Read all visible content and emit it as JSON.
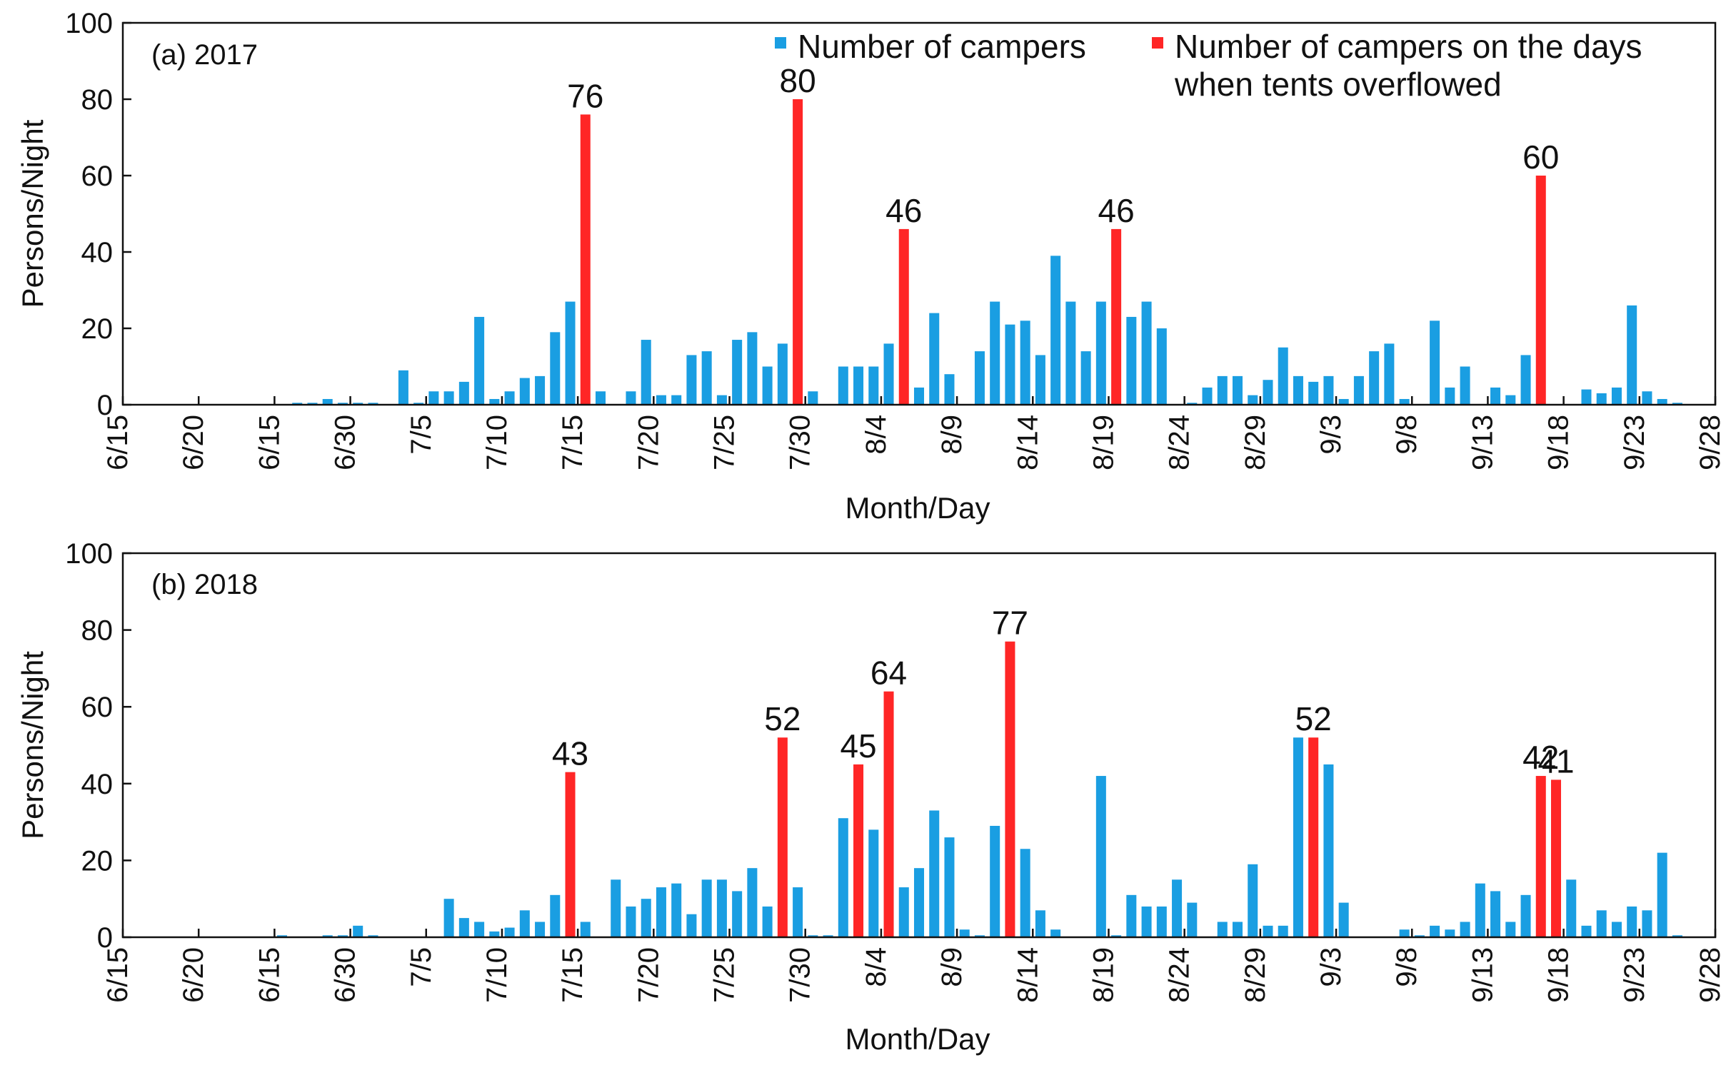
{
  "legend": {
    "normal": "Number of campers",
    "overflow_line1": "Number of campers on the days",
    "overflow_line2": "when tents overflowed"
  },
  "colors": {
    "normal": "#1a9ee2",
    "overflow": "#ff2626",
    "axis": "#111111"
  },
  "chart_data": [
    {
      "type": "bar",
      "title": "(a) 2017",
      "xlabel": "Month/Day",
      "ylabel": "Persons/Night",
      "ylim": [
        0,
        100
      ],
      "yticks": [
        0,
        20,
        40,
        60,
        80,
        100
      ],
      "xtick_labels": [
        "6/15",
        "6/20",
        "6/15",
        "6/30",
        "7/5",
        "7/10",
        "7/15",
        "7/20",
        "7/25",
        "7/30",
        "8/4",
        "8/9",
        "8/14",
        "8/19",
        "8/24",
        "8/29",
        "9/3",
        "9/8",
        "9/13",
        "9/18",
        "9/23",
        "9/28"
      ],
      "xlim": [
        0,
        105
      ],
      "series": [
        {
          "name": "Number of campers",
          "points": [
            [
              11,
              0.5
            ],
            [
              12,
              0.5
            ],
            [
              13,
              1.5
            ],
            [
              14,
              0.5
            ],
            [
              15,
              0.5
            ],
            [
              16,
              0.5
            ],
            [
              18,
              9
            ],
            [
              19,
              0.5
            ],
            [
              20,
              3.5
            ],
            [
              21,
              3.5
            ],
            [
              22,
              6
            ],
            [
              23,
              23
            ],
            [
              24,
              1.5
            ],
            [
              25,
              3.5
            ],
            [
              26,
              7
            ],
            [
              27,
              7.5
            ],
            [
              28,
              19
            ],
            [
              29,
              27
            ],
            [
              31,
              3.5
            ],
            [
              33,
              3.5
            ],
            [
              34,
              17
            ],
            [
              35,
              2.5
            ],
            [
              36,
              2.5
            ],
            [
              37,
              13
            ],
            [
              38,
              14
            ],
            [
              39,
              2.5
            ],
            [
              40,
              17
            ],
            [
              41,
              19
            ],
            [
              42,
              10
            ],
            [
              43,
              16
            ],
            [
              45,
              3.5
            ],
            [
              47,
              10
            ],
            [
              48,
              10
            ],
            [
              49,
              10
            ],
            [
              50,
              16
            ],
            [
              52,
              4.5
            ],
            [
              53,
              24
            ],
            [
              54,
              8
            ],
            [
              56,
              14
            ],
            [
              57,
              27
            ],
            [
              58,
              21
            ],
            [
              59,
              22
            ],
            [
              60,
              13
            ],
            [
              61,
              39
            ],
            [
              62,
              27
            ],
            [
              63,
              14
            ],
            [
              64,
              27
            ],
            [
              66,
              23
            ],
            [
              67,
              27
            ],
            [
              68,
              20
            ],
            [
              70,
              0.5
            ],
            [
              71,
              4.5
            ],
            [
              72,
              7.5
            ],
            [
              73,
              7.5
            ],
            [
              74,
              2.5
            ],
            [
              75,
              6.5
            ],
            [
              76,
              15
            ],
            [
              77,
              7.5
            ],
            [
              78,
              6
            ],
            [
              79,
              7.5
            ],
            [
              80,
              1.5
            ],
            [
              81,
              7.5
            ],
            [
              82,
              14
            ],
            [
              83,
              16
            ],
            [
              84,
              1.5
            ],
            [
              86,
              22
            ],
            [
              87,
              4.5
            ],
            [
              88,
              10
            ],
            [
              90,
              4.5
            ],
            [
              91,
              2.5
            ],
            [
              92,
              13
            ],
            [
              96,
              4
            ],
            [
              97,
              3
            ],
            [
              98,
              4.5
            ],
            [
              99,
              26
            ],
            [
              100,
              3.5
            ],
            [
              101,
              1.5
            ],
            [
              102,
              0.5
            ]
          ]
        },
        {
          "name": "Number of campers on the days when tents overflowed",
          "points": [
            [
              30,
              76
            ],
            [
              44,
              80
            ],
            [
              51,
              46
            ],
            [
              65,
              46
            ],
            [
              93,
              60
            ]
          ]
        }
      ],
      "data_labels": [
        {
          "x": 30,
          "label": "76"
        },
        {
          "x": 44,
          "label": "80"
        },
        {
          "x": 51,
          "label": "46"
        },
        {
          "x": 65,
          "label": "46"
        },
        {
          "x": 93,
          "label": "60"
        }
      ]
    },
    {
      "type": "bar",
      "title": "(b) 2018",
      "xlabel": "Month/Day",
      "ylabel": "Persons/Night",
      "ylim": [
        0,
        100
      ],
      "yticks": [
        0,
        20,
        40,
        60,
        80,
        100
      ],
      "xtick_labels": [
        "6/15",
        "6/20",
        "6/15",
        "6/30",
        "7/5",
        "7/10",
        "7/15",
        "7/20",
        "7/25",
        "7/30",
        "8/4",
        "8/9",
        "8/14",
        "8/19",
        "8/24",
        "8/29",
        "9/3",
        "9/8",
        "9/13",
        "9/18",
        "9/23",
        "9/28"
      ],
      "xlim": [
        0,
        105
      ],
      "series": [
        {
          "name": "Number of campers",
          "points": [
            [
              10,
              0.5
            ],
            [
              13,
              0.5
            ],
            [
              14,
              0.5
            ],
            [
              15,
              3
            ],
            [
              16,
              0.5
            ],
            [
              21,
              10
            ],
            [
              22,
              5
            ],
            [
              23,
              4
            ],
            [
              24,
              1.5
            ],
            [
              25,
              2.5
            ],
            [
              26,
              7
            ],
            [
              27,
              4
            ],
            [
              28,
              11
            ],
            [
              30,
              4
            ],
            [
              32,
              15
            ],
            [
              33,
              8
            ],
            [
              34,
              10
            ],
            [
              35,
              13
            ],
            [
              36,
              14
            ],
            [
              37,
              6
            ],
            [
              38,
              15
            ],
            [
              39,
              15
            ],
            [
              40,
              12
            ],
            [
              41,
              18
            ],
            [
              42,
              8
            ],
            [
              44,
              13
            ],
            [
              45,
              0.5
            ],
            [
              46,
              0.5
            ],
            [
              47,
              31
            ],
            [
              49,
              28
            ],
            [
              51,
              13
            ],
            [
              52,
              18
            ],
            [
              53,
              33
            ],
            [
              54,
              26
            ],
            [
              55,
              2
            ],
            [
              56,
              0.5
            ],
            [
              57,
              29
            ],
            [
              59,
              23
            ],
            [
              60,
              7
            ],
            [
              61,
              2
            ],
            [
              64,
              42
            ],
            [
              65,
              0.5
            ],
            [
              66,
              11
            ],
            [
              67,
              8
            ],
            [
              68,
              8
            ],
            [
              69,
              15
            ],
            [
              70,
              9
            ],
            [
              72,
              4
            ],
            [
              73,
              4
            ],
            [
              74,
              19
            ],
            [
              75,
              3
            ],
            [
              76,
              3
            ],
            [
              77,
              52
            ],
            [
              79,
              45
            ],
            [
              80,
              9
            ],
            [
              84,
              2
            ],
            [
              85,
              0.5
            ],
            [
              86,
              3
            ],
            [
              87,
              2
            ],
            [
              88,
              4
            ],
            [
              89,
              14
            ],
            [
              90,
              12
            ],
            [
              91,
              4
            ],
            [
              92,
              11
            ],
            [
              95,
              15
            ],
            [
              96,
              3
            ],
            [
              97,
              7
            ],
            [
              98,
              4
            ],
            [
              99,
              8
            ],
            [
              100,
              7
            ],
            [
              101,
              22
            ],
            [
              102,
              0.5
            ]
          ]
        },
        {
          "name": "Number of campers on the days when tents overflowed",
          "points": [
            [
              29,
              43
            ],
            [
              43,
              52
            ],
            [
              48,
              45
            ],
            [
              50,
              64
            ],
            [
              58,
              77
            ],
            [
              78,
              52
            ],
            [
              93,
              42
            ],
            [
              94,
              41
            ]
          ]
        }
      ],
      "data_labels": [
        {
          "x": 29,
          "label": "43"
        },
        {
          "x": 43,
          "label": "52"
        },
        {
          "x": 48,
          "label": "45"
        },
        {
          "x": 50,
          "label": "64"
        },
        {
          "x": 58,
          "label": "77"
        },
        {
          "x": 78,
          "label": "52"
        },
        {
          "x": 93,
          "label": "42"
        },
        {
          "x": 94,
          "label": "41"
        }
      ]
    }
  ]
}
